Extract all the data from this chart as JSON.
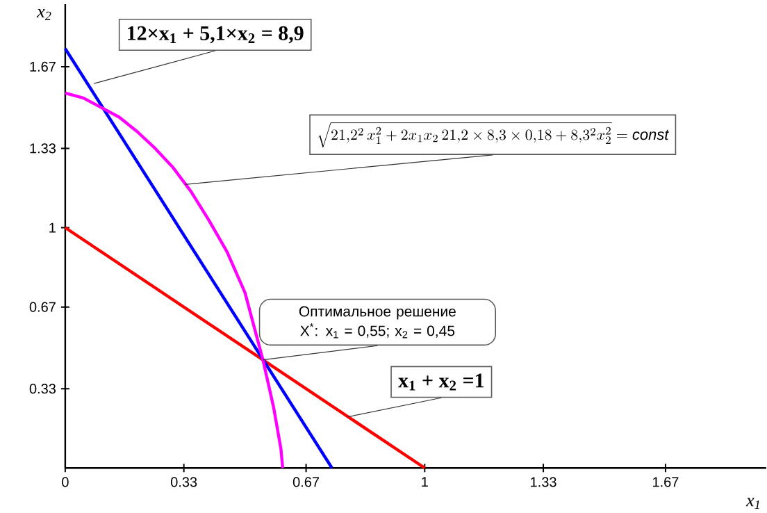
{
  "chart_data": {
    "type": "line",
    "xlabel": "x$_{1}$",
    "ylabel": "x$_{2}$",
    "xlim": [
      0,
      1.95
    ],
    "ylim": [
      0,
      1.93
    ],
    "xticks": [
      0,
      0.33,
      0.67,
      1,
      1.33,
      1.67
    ],
    "yticks": [
      0.33,
      0.67,
      1,
      1.33,
      1.67
    ],
    "grid": false,
    "marker": "none",
    "line_style": "solid",
    "series": [
      {
        "color": "#ff0000",
        "x": [
          0,
          1
        ],
        "values": [
          1,
          0
        ]
      },
      {
        "color": "#0000ff",
        "x": [
          0,
          0.742
        ],
        "values": [
          1.745,
          0
        ]
      },
      {
        "color": "#ff00ff",
        "x": [
          0,
          0.05,
          0.1,
          0.15,
          0.2,
          0.25,
          0.3,
          0.35,
          0.4,
          0.45,
          0.5,
          0.55,
          0.58,
          0.6,
          0.605
        ],
        "values": [
          1.56,
          1.54,
          1.5,
          1.46,
          1.4,
          1.33,
          1.25,
          1.15,
          1.03,
          0.9,
          0.73,
          0.45,
          0.25,
          0.08,
          0
        ]
      }
    ],
    "annotations": [
      {
        "text": "12×x$_{1}$ + 5,1×x$_{2}$ = 8,9",
        "x": 0.08,
        "y": 1.6
      },
      {
        "text": "\\sqrt{21{,}2^2\\,x_1^2+2x_1x_2\\,21{,}2\\times 8{,}3\\times 0{,}18+8{,}3^2x_2^2}=\\mathit{const}",
        "x": 0.333,
        "y": 1.18
      },
      {
        "text": "Оптимальное решение X$^{*}$: x$_{1}$ = 0,55; x$_{2}$ = 0,45",
        "x": 0.55,
        "y": 0.45
      },
      {
        "text": "x$_{1}$ + x$_{2}$ =1",
        "x": 0.787,
        "y": 0.213
      }
    ]
  }
}
